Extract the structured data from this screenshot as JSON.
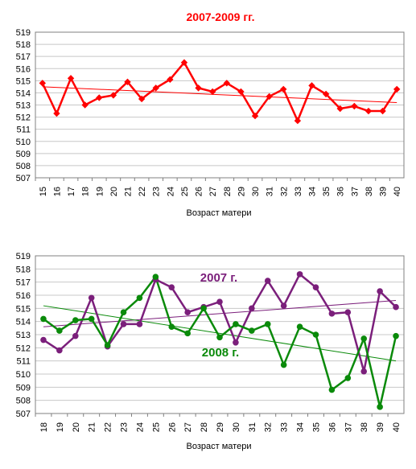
{
  "chart_data": [
    {
      "type": "line",
      "title": "2007-2009 гг.",
      "xlabel": "Возраст матери",
      "ylabel": "",
      "x": [
        15,
        16,
        17,
        18,
        19,
        20,
        21,
        22,
        23,
        24,
        25,
        26,
        27,
        28,
        29,
        30,
        31,
        32,
        33,
        34,
        35,
        36,
        37,
        38,
        39,
        40
      ],
      "ylim": [
        507,
        519
      ],
      "yticks": [
        507,
        508,
        509,
        510,
        511,
        512,
        513,
        514,
        515,
        516,
        517,
        518,
        519
      ],
      "grid": true,
      "legend": "none",
      "series": [
        {
          "color": "#ff0000",
          "marker": "diamond",
          "values": [
            514.8,
            512.3,
            515.2,
            513.0,
            513.6,
            513.8,
            514.9,
            513.5,
            514.4,
            515.1,
            516.5,
            514.4,
            514.1,
            514.8,
            514.1,
            512.1,
            513.7,
            514.3,
            511.7,
            514.6,
            513.9,
            512.7,
            512.9,
            512.5,
            512.5,
            514.3
          ],
          "trend": [
            514.5,
            513.2
          ]
        }
      ]
    },
    {
      "type": "line",
      "title": "",
      "xlabel": "Возраст матери",
      "ylabel": "",
      "x": [
        18,
        19,
        20,
        21,
        22,
        23,
        24,
        25,
        26,
        27,
        28,
        29,
        30,
        31,
        32,
        33,
        34,
        35,
        36,
        37,
        38,
        39,
        40
      ],
      "ylim": [
        507,
        519
      ],
      "yticks": [
        507,
        508,
        509,
        510,
        511,
        512,
        513,
        514,
        515,
        516,
        517,
        518,
        519
      ],
      "grid": true,
      "legend": "none",
      "series": [
        {
          "name": "2007 г.",
          "color": "#7b1f7b",
          "marker": "circle",
          "values": [
            512.6,
            511.8,
            512.9,
            515.8,
            512.1,
            513.8,
            513.8,
            517.2,
            516.6,
            514.7,
            515.1,
            515.5,
            512.4,
            515.0,
            517.1,
            515.2,
            517.6,
            516.6,
            514.6,
            514.7,
            510.2,
            516.3,
            515.1
          ],
          "trend": [
            513.6,
            515.6
          ]
        },
        {
          "name": "2008 г.",
          "color": "#0a8a0a",
          "marker": "circle",
          "values": [
            514.2,
            513.3,
            514.1,
            514.2,
            512.2,
            514.7,
            515.8,
            517.4,
            513.6,
            513.1,
            515.0,
            512.8,
            513.8,
            513.3,
            513.8,
            510.7,
            513.6,
            513.0,
            508.8,
            509.7,
            512.7,
            507.5,
            512.9
          ],
          "trend": [
            515.2,
            511.0
          ]
        }
      ]
    }
  ]
}
